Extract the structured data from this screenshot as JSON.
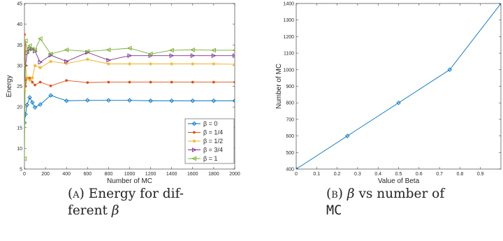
{
  "chart_data": [
    {
      "type": "line",
      "xlabel": "Number of MC",
      "ylabel": "Energy",
      "xlim": [
        0,
        2000
      ],
      "ylim": [
        5,
        45
      ],
      "xticks": [
        0,
        200,
        400,
        600,
        800,
        1000,
        1200,
        1400,
        1600,
        1800,
        2000
      ],
      "yticks": [
        5,
        10,
        15,
        20,
        25,
        30,
        35,
        40,
        45
      ],
      "grid": false,
      "legend_position": "bottom-right",
      "series": [
        {
          "name": "β = 0",
          "color": "#0072BD",
          "marker": "diamond",
          "x": [
            0,
            10,
            25,
            50,
            75,
            100,
            150,
            250,
            400,
            600,
            800,
            1000,
            1200,
            1400,
            1600,
            1800,
            2000
          ],
          "y": [
            16.2,
            18.2,
            20.5,
            22.3,
            21.1,
            19.9,
            20.6,
            22.8,
            21.5,
            21.6,
            21.6,
            21.6,
            21.5,
            21.5,
            21.5,
            21.5,
            21.5
          ]
        },
        {
          "name": "β = 1/4",
          "color": "#D95319",
          "marker": "dot",
          "x": [
            0,
            10,
            25,
            50,
            75,
            100,
            150,
            250,
            400,
            600,
            800,
            1000,
            1200,
            1400,
            1600,
            1800,
            2000
          ],
          "y": [
            37.5,
            25.0,
            27.0,
            27.0,
            26.0,
            25.3,
            26.0,
            25.1,
            26.4,
            25.9,
            26.0,
            26.0,
            26.0,
            26.0,
            26.0,
            26.0,
            26.0
          ]
        },
        {
          "name": "β = 1/2",
          "color": "#EDB120",
          "marker": "star",
          "x": [
            0,
            10,
            25,
            50,
            75,
            100,
            150,
            250,
            400,
            600,
            800,
            1000,
            1200,
            1400,
            1600,
            1800,
            2000
          ],
          "y": [
            24.0,
            30.0,
            27.0,
            26.5,
            27.0,
            30.0,
            29.5,
            31.0,
            30.5,
            31.5,
            30.4,
            30.4,
            30.4,
            30.4,
            30.4,
            30.4,
            30.3
          ]
        },
        {
          "name": "β = 3/4",
          "color": "#7E2F8E",
          "marker": "triangle-right",
          "x": [
            0,
            10,
            25,
            50,
            75,
            100,
            150,
            250,
            400,
            600,
            800,
            1000,
            1200,
            1400,
            1600,
            1800,
            2000
          ],
          "y": [
            26.5,
            30.0,
            33.0,
            34.0,
            34.0,
            33.5,
            30.8,
            32.5,
            31.0,
            33.2,
            31.3,
            32.4,
            32.4,
            32.4,
            32.4,
            32.4,
            32.4
          ]
        },
        {
          "name": "β = 1",
          "color": "#77AC30",
          "marker": "triangle-left",
          "x": [
            0,
            10,
            25,
            50,
            75,
            100,
            150,
            250,
            400,
            600,
            800,
            1000,
            1200,
            1400,
            1600,
            1800,
            2000
          ],
          "y": [
            7.5,
            36.0,
            33.5,
            34.8,
            34.0,
            33.7,
            36.5,
            32.8,
            33.8,
            33.4,
            33.8,
            34.2,
            32.8,
            33.7,
            33.8,
            33.7,
            33.7
          ]
        }
      ]
    },
    {
      "type": "line",
      "xlabel": "Value of Beta",
      "ylabel": "Number of MC",
      "xlim": [
        0,
        1
      ],
      "ylim": [
        400,
        1400
      ],
      "xticks": [
        0,
        0.1,
        0.2,
        0.3,
        0.4,
        0.5,
        0.6,
        0.7,
        0.8,
        0.9
      ],
      "xtick_labels": [
        "0",
        "0.1",
        "0.2",
        "0.3",
        "0.4",
        "0.5",
        "0.6",
        "0.7",
        "0.8",
        "0.9"
      ],
      "yticks": [
        400,
        500,
        600,
        700,
        800,
        900,
        1000,
        1100,
        1200,
        1300,
        1400
      ],
      "grid": false,
      "series": [
        {
          "color": "#0072BD",
          "marker": "diamond",
          "x": [
            0,
            0.25,
            0.5,
            0.75,
            1.0
          ],
          "y": [
            400,
            600,
            800,
            1000,
            1400
          ]
        }
      ]
    }
  ],
  "captions": {
    "a_tag": "(a)",
    "a_line1": " Energy for dif-",
    "a_line2_text": "ferent ",
    "a_symbol": "β",
    "b_tag": "(b)",
    "b_symbol": "β",
    "b_line1_text": " vs number of",
    "b_line2": "MC"
  }
}
